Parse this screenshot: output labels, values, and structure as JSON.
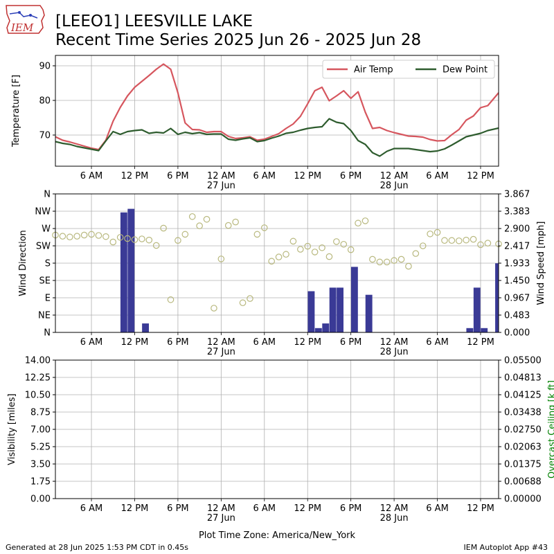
{
  "header": {
    "logo_text": "IEM",
    "title_line1": "[LEEO1] LEESVILLE LAKE",
    "title_line2": "Recent Time Series 2025 Jun 26 - 2025 Jun 28"
  },
  "footer": {
    "left": "Generated at 28 Jun 2025 1:53 PM CDT in 0.45s",
    "right": "IEM Autoplot App #43",
    "timezone": "Plot Time Zone: America/New_York"
  },
  "colors": {
    "air_temp": "#d6565e",
    "dew_point": "#2e5c2e",
    "wind_bar": "#3a3a96",
    "wind_dir_marker": "#b8b87e",
    "ceiling_label": "#008000"
  },
  "chart_data": [
    {
      "type": "line",
      "ylabel": "Temperature [F]",
      "yticks": [
        70,
        80,
        90
      ],
      "ylim": [
        61,
        93
      ],
      "xlim": [
        0,
        61.5
      ],
      "xunit": "hours since Jun 26 1 AM",
      "xticks": [
        {
          "x": 5,
          "label": "6 AM"
        },
        {
          "x": 11,
          "label": "12 PM"
        },
        {
          "x": 17,
          "label": "6 PM"
        },
        {
          "x": 23,
          "label": "12 AM",
          "sub": "27 Jun"
        },
        {
          "x": 29,
          "label": "6 AM"
        },
        {
          "x": 35,
          "label": "12 PM"
        },
        {
          "x": 41,
          "label": "6 PM"
        },
        {
          "x": 47,
          "label": "12 AM",
          "sub": "28 Jun"
        },
        {
          "x": 53,
          "label": "6 AM"
        },
        {
          "x": 59,
          "label": "12 PM"
        }
      ],
      "grid": true,
      "legend": {
        "placement": "top-right",
        "entries": [
          "Air Temp",
          "Dew Point"
        ]
      },
      "series": [
        {
          "name": "Air Temp",
          "x": [
            0,
            1,
            2,
            3,
            4,
            5,
            6,
            7,
            8,
            9,
            10,
            11,
            12,
            13,
            14,
            15,
            16,
            17,
            18,
            19,
            20,
            21,
            22,
            23,
            24,
            25,
            26,
            27,
            28,
            29,
            30,
            31,
            32,
            33,
            34,
            35,
            36,
            37,
            38,
            39,
            40,
            41,
            42,
            43,
            44,
            45,
            46,
            47,
            48,
            49,
            50,
            51,
            52,
            53,
            54,
            55,
            56,
            57,
            58,
            59,
            60,
            61.5
          ],
          "y": [
            69.5,
            68.5,
            68,
            67.4,
            66.8,
            66.2,
            65.8,
            68.5,
            74,
            78,
            81.3,
            83.8,
            85.5,
            87.2,
            89,
            90.5,
            89,
            82.2,
            73.5,
            71.6,
            71.5,
            70.8,
            71,
            71,
            69.6,
            69,
            69.2,
            69.5,
            68.5,
            68.8,
            69.6,
            70.4,
            71.9,
            73.2,
            75.4,
            79,
            82.8,
            83.8,
            79.9,
            81.3,
            82.8,
            80.6,
            82.5,
            76.6,
            71.9,
            72.2,
            71.3,
            70.7,
            70.2,
            69.7,
            69.6,
            69.4,
            68.7,
            68.3,
            68.4,
            70.1,
            71.6,
            74.3,
            75.5,
            77.9,
            78.5,
            82.2
          ]
        },
        {
          "name": "Dew Point",
          "x": [
            0,
            1,
            2,
            3,
            4,
            5,
            6,
            7,
            8,
            9,
            10,
            11,
            12,
            13,
            14,
            15,
            16,
            17,
            18,
            19,
            20,
            21,
            22,
            23,
            24,
            25,
            26,
            27,
            28,
            29,
            30,
            31,
            32,
            33,
            34,
            35,
            36,
            37,
            38,
            39,
            40,
            41,
            42,
            43,
            44,
            45,
            46,
            47,
            48,
            49,
            50,
            51,
            52,
            53,
            54,
            55,
            56,
            57,
            58,
            59,
            60,
            61.5
          ],
          "y": [
            68.1,
            67.6,
            67.3,
            66.7,
            66.3,
            65.9,
            65.5,
            68.3,
            71,
            70.2,
            71,
            71.3,
            71.5,
            70.5,
            70.8,
            70.6,
            71.9,
            70.2,
            70.8,
            70.4,
            70.7,
            70.2,
            70.3,
            70.3,
            68.8,
            68.5,
            68.9,
            69.2,
            68.1,
            68.4,
            69.1,
            69.7,
            70.5,
            70.8,
            71.4,
            71.9,
            72.2,
            72.4,
            74.7,
            73.7,
            73.3,
            71.3,
            68.4,
            67.3,
            64.9,
            63.9,
            65.3,
            66.1,
            66.1,
            66.1,
            65.8,
            65.5,
            65.2,
            65.4,
            66,
            67.1,
            68.3,
            69.5,
            70,
            70.5,
            71.3,
            72
          ]
        }
      ]
    },
    {
      "type": "bar",
      "ylabel": "Wind Direction",
      "y2label": "Wind Speed [mph]",
      "ylim": [
        0,
        360
      ],
      "yticks": [
        {
          "v": 0,
          "label": "N"
        },
        {
          "v": 45,
          "label": "NE"
        },
        {
          "v": 90,
          "label": "E"
        },
        {
          "v": 135,
          "label": "SE"
        },
        {
          "v": 180,
          "label": "S"
        },
        {
          "v": 225,
          "label": "SW"
        },
        {
          "v": 270,
          "label": "W"
        },
        {
          "v": 315,
          "label": "NW"
        },
        {
          "v": 360,
          "label": "N"
        }
      ],
      "y2lim": [
        0,
        3.867
      ],
      "y2ticks": [
        "0.000",
        "0.483",
        "0.967",
        "1.450",
        "1.933",
        "2.417",
        "2.900",
        "3.383",
        "3.867"
      ],
      "grid": true,
      "wind_speed": {
        "x": [
          9.5,
          10.5,
          12.5,
          35.5,
          36.5,
          37.5,
          38.5,
          39.5,
          40.5,
          41.5,
          43.5,
          57.5,
          58.5,
          59.5,
          61.5
        ],
        "values": [
          3.35,
          3.45,
          0.25,
          1.15,
          0.12,
          0.25,
          1.25,
          1.25,
          0,
          1.83,
          1.05,
          0.12,
          1.25,
          0.12,
          1.93
        ]
      },
      "wind_direction": {
        "x": [
          0,
          1,
          2,
          3,
          4,
          5,
          6,
          7,
          8,
          9,
          10,
          11,
          12,
          13,
          14,
          15,
          16,
          17,
          18,
          19,
          20,
          21,
          22,
          23,
          24,
          25,
          26,
          27,
          28,
          29,
          30,
          31,
          32,
          33,
          34,
          35,
          36,
          37,
          38,
          39,
          40,
          41,
          42,
          43,
          44,
          45,
          46,
          47,
          48,
          49,
          50,
          51,
          52,
          53,
          54,
          55,
          56,
          57,
          58,
          59,
          60,
          61.5
        ],
        "values": [
          253,
          250,
          248,
          250,
          253,
          255,
          252,
          249,
          235,
          247,
          244,
          241,
          243,
          240,
          226,
          271,
          85,
          239,
          255,
          301,
          277,
          294,
          63,
          191,
          278,
          287,
          77,
          88,
          255,
          272,
          185,
          196,
          203,
          237,
          216,
          224,
          209,
          220,
          197,
          236,
          229,
          215,
          284,
          290,
          190,
          183,
          183,
          187,
          190,
          172,
          205,
          225,
          256,
          260,
          239,
          239,
          238,
          240,
          242,
          228,
          232,
          230
        ]
      }
    },
    {
      "type": "line",
      "ylabel": "Visibility [miles]",
      "y2label": "Overcast Ceiling [k ft]",
      "ylim": [
        0,
        14
      ],
      "yticks": [
        "0.00",
        "1.75",
        "3.50",
        "5.25",
        "7.00",
        "8.75",
        "10.50",
        "12.25",
        "14.00"
      ],
      "y2lim": [
        0,
        0.055
      ],
      "y2ticks": [
        "0.00000",
        "0.00688",
        "0.01375",
        "0.02063",
        "0.02750",
        "0.03438",
        "0.04125",
        "0.04813",
        "0.05500"
      ],
      "grid": true,
      "xlabel": "Plot Time Zone: America/New_York",
      "series": []
    }
  ]
}
